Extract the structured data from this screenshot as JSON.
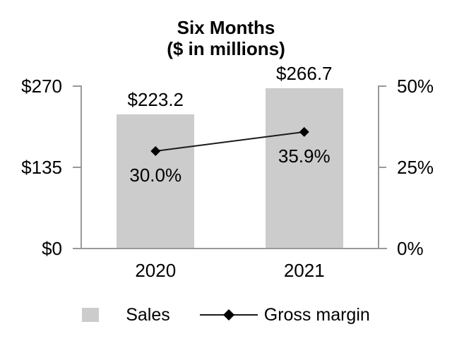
{
  "title": {
    "line1": "Six Months",
    "line2": "($ in millions)"
  },
  "colors": {
    "bar_fill": "#cccccc",
    "axis_line": "#999999",
    "series_line": "#1a1a1a",
    "text": "#000000"
  },
  "legend": [
    {
      "type": "bar",
      "label": "Sales"
    },
    {
      "type": "line",
      "label": "Gross margin"
    }
  ],
  "chart_data": {
    "type": "bar",
    "subtype": "bar-line-combo",
    "title": "Six Months ($ in millions)",
    "categories": [
      "2020",
      "2021"
    ],
    "series": [
      {
        "name": "Sales",
        "type": "bar",
        "axis": "left",
        "values": [
          223.2,
          266.7
        ],
        "labels": [
          "$223.2",
          "$266.7"
        ]
      },
      {
        "name": "Gross margin",
        "type": "line",
        "axis": "right",
        "values": [
          30.0,
          35.9
        ],
        "labels": [
          "30.0%",
          "35.9%"
        ]
      }
    ],
    "left_axis": {
      "range": [
        0,
        270
      ],
      "ticks": [
        270,
        135,
        0
      ],
      "tick_labels": [
        "$270",
        "$135",
        "$0"
      ]
    },
    "right_axis": {
      "range": [
        0,
        50
      ],
      "ticks": [
        50,
        25,
        0
      ],
      "tick_labels": [
        "50%",
        "25%",
        "0%"
      ]
    },
    "grid": false,
    "legend_position": "bottom"
  }
}
